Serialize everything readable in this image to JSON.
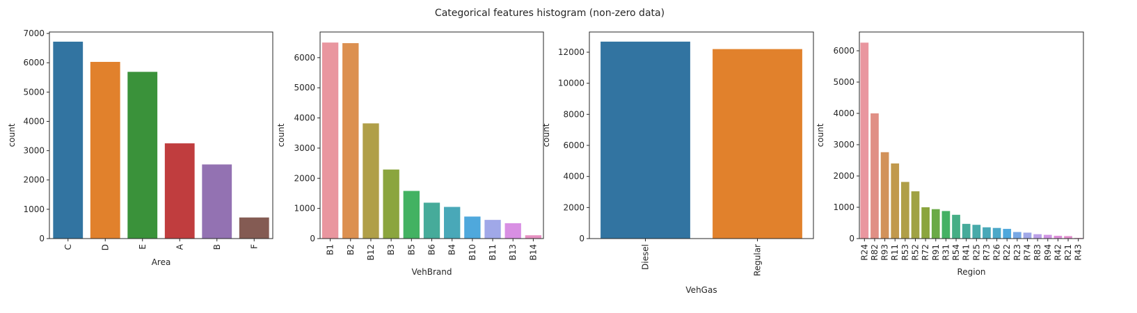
{
  "figure": {
    "title": "Categorical features histogram (non-zero data)"
  },
  "chart_data": [
    {
      "type": "bar",
      "title": "",
      "xlabel": "Area",
      "ylabel": "count",
      "ylim": [
        0,
        7050
      ],
      "yticks": [
        0,
        1000,
        2000,
        3000,
        4000,
        5000,
        6000,
        7000
      ],
      "categories": [
        "C",
        "D",
        "E",
        "A",
        "B",
        "F"
      ],
      "values": [
        6720,
        6030,
        5690,
        3250,
        2530,
        720
      ],
      "colors": [
        "#3274a1",
        "#e1812c",
        "#3a923a",
        "#c03d3e",
        "#9372b2",
        "#845b53"
      ]
    },
    {
      "type": "bar",
      "title": "",
      "xlabel": "VehBrand",
      "ylabel": "count",
      "ylim": [
        0,
        6850
      ],
      "yticks": [
        0,
        1000,
        2000,
        3000,
        4000,
        5000,
        6000
      ],
      "categories": [
        "B1",
        "B2",
        "B12",
        "B3",
        "B5",
        "B6",
        "B4",
        "B10",
        "B11",
        "B13",
        "B14"
      ],
      "values": [
        6500,
        6480,
        3820,
        2290,
        1580,
        1190,
        1050,
        730,
        620,
        510,
        110
      ],
      "colors": [
        "#e9969f",
        "#dc9050",
        "#b09f48",
        "#8ba53e",
        "#43b262",
        "#46ab9a",
        "#49a8b8",
        "#4fa8dc",
        "#a0a8e8",
        "#d88fe3",
        "#e690c1"
      ]
    },
    {
      "type": "bar",
      "title": "",
      "xlabel": "VehGas",
      "ylabel": "count",
      "ylim": [
        0,
        13300
      ],
      "yticks": [
        0,
        2000,
        4000,
        6000,
        8000,
        10000,
        12000
      ],
      "categories": [
        "Diesel",
        "Regular"
      ],
      "values": [
        12680,
        12200
      ],
      "colors": [
        "#3274a1",
        "#e1812c"
      ]
    },
    {
      "type": "bar",
      "title": "",
      "xlabel": "Region",
      "ylabel": "count",
      "ylim": [
        0,
        6600
      ],
      "yticks": [
        0,
        1000,
        2000,
        3000,
        4000,
        5000,
        6000
      ],
      "categories": [
        "R24",
        "R82",
        "R93",
        "R11",
        "R53",
        "R52",
        "R72",
        "R91",
        "R31",
        "R54",
        "R41",
        "R25",
        "R73",
        "R26",
        "R22",
        "R23",
        "R74",
        "R83",
        "R94",
        "R42",
        "R21",
        "R43"
      ],
      "values": [
        6260,
        4000,
        2760,
        2400,
        1810,
        1510,
        1000,
        940,
        880,
        760,
        470,
        440,
        360,
        340,
        310,
        210,
        190,
        140,
        120,
        90,
        80,
        20
      ],
      "colors": [
        "#e9969f",
        "#e08f85",
        "#d2925a",
        "#c1994c",
        "#b09f48",
        "#a0a244",
        "#8ba53e",
        "#6aaa46",
        "#44b164",
        "#45ae85",
        "#46ab9a",
        "#47aaa9",
        "#49a8b8",
        "#4ca8c8",
        "#4fa8dc",
        "#78a8e5",
        "#a0a8e8",
        "#bba0e8",
        "#d095e4",
        "#dd8fd9",
        "#e38fcd",
        "#e690c1"
      ]
    }
  ]
}
